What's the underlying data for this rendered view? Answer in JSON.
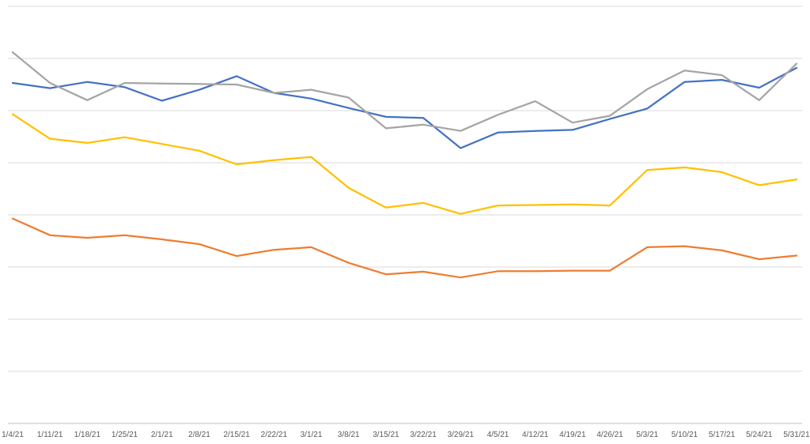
{
  "chart_data": {
    "type": "line",
    "title": "",
    "xlabel": "",
    "ylabel": "",
    "categories": [
      "1/4/21",
      "1/11/21",
      "1/18/21",
      "1/25/21",
      "2/1/21",
      "2/8/21",
      "2/15/21",
      "2/22/21",
      "3/1/21",
      "3/8/21",
      "3/15/21",
      "3/22/21",
      "3/29/21",
      "4/5/21",
      "4/12/21",
      "4/19/21",
      "4/26/21",
      "5/3/21",
      "5/10/21",
      "5/17/21",
      "5/24/21",
      "5/31/21"
    ],
    "ylim": [
      0,
      8
    ],
    "grid": true,
    "legend": "none",
    "series": [
      {
        "color": "#4472c4",
        "values": [
          6.53,
          6.43,
          6.55,
          6.45,
          6.19,
          6.4,
          6.66,
          6.34,
          6.23,
          6.05,
          5.88,
          5.86,
          5.28,
          5.58,
          5.61,
          5.63,
          5.84,
          6.04,
          6.55,
          6.59,
          6.44,
          6.82
        ]
      },
      {
        "color": "#a5a5a5",
        "values": [
          7.12,
          6.53,
          6.2,
          6.53,
          6.52,
          6.51,
          6.5,
          6.34,
          6.4,
          6.25,
          5.66,
          5.73,
          5.61,
          5.92,
          6.18,
          5.77,
          5.9,
          6.41,
          6.77,
          6.68,
          6.2,
          6.9
        ]
      },
      {
        "color": "#ffc000",
        "values": [
          5.93,
          5.46,
          5.38,
          5.49,
          5.36,
          5.23,
          4.97,
          5.05,
          5.11,
          4.52,
          4.14,
          4.23,
          4.02,
          4.18,
          4.19,
          4.2,
          4.18,
          4.86,
          4.91,
          4.82,
          4.57,
          4.68
        ]
      },
      {
        "color": "#ed7d31",
        "values": [
          3.93,
          3.61,
          3.56,
          3.61,
          3.53,
          3.44,
          3.21,
          3.33,
          3.38,
          3.08,
          2.86,
          2.91,
          2.8,
          2.92,
          2.92,
          2.93,
          2.93,
          3.38,
          3.4,
          3.32,
          3.15,
          3.22
        ]
      }
    ]
  }
}
